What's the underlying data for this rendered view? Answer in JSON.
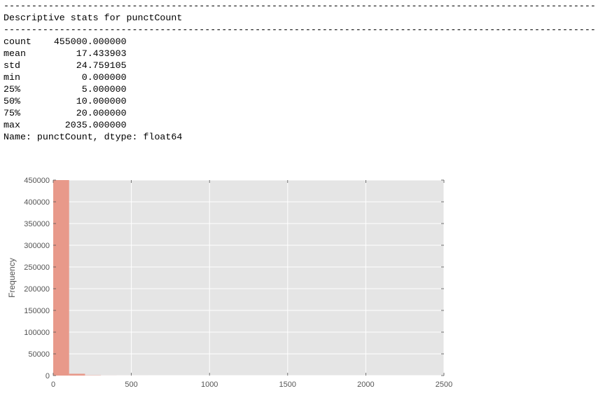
{
  "console": {
    "rule": "----------------------------------------------------------------------------------------------------------",
    "heading": "Descriptive stats for punctCount",
    "stats": [
      {
        "label": "count",
        "value": "455000.000000"
      },
      {
        "label": "mean",
        "value": "17.433903"
      },
      {
        "label": "std",
        "value": "24.759105"
      },
      {
        "label": "min",
        "value": "0.000000"
      },
      {
        "label": "25%",
        "value": "5.000000"
      },
      {
        "label": "50%",
        "value": "10.000000"
      },
      {
        "label": "75%",
        "value": "20.000000"
      },
      {
        "label": "max",
        "value": "2035.000000"
      }
    ],
    "footer": "Name: punctCount, dtype: float64"
  },
  "chart_data": {
    "type": "bar",
    "title": "",
    "xlabel": "",
    "ylabel": "Frequency",
    "xlim": [
      0,
      2500
    ],
    "ylim": [
      0,
      450000
    ],
    "xticks": [
      0,
      500,
      1000,
      1500,
      2000,
      2500
    ],
    "yticks": [
      0,
      50000,
      100000,
      150000,
      200000,
      250000,
      300000,
      350000,
      400000,
      450000
    ],
    "grid": true,
    "bins": [
      {
        "x0": 0,
        "x1": 101.75,
        "count": 450000
      },
      {
        "x0": 101.75,
        "x1": 203.5,
        "count": 4200
      },
      {
        "x0": 203.5,
        "x1": 305.25,
        "count": 600
      },
      {
        "x0": 305.25,
        "x1": 407,
        "count": 120
      },
      {
        "x0": 407,
        "x1": 508.75,
        "count": 40
      },
      {
        "x0": 508.75,
        "x1": 610.5,
        "count": 15
      },
      {
        "x0": 610.5,
        "x1": 712.25,
        "count": 8
      },
      {
        "x0": 712.25,
        "x1": 814,
        "count": 5
      },
      {
        "x0": 814,
        "x1": 915.75,
        "count": 3
      },
      {
        "x0": 915.75,
        "x1": 1017.5,
        "count": 2
      },
      {
        "x0": 1017.5,
        "x1": 1119.25,
        "count": 2
      },
      {
        "x0": 1119.25,
        "x1": 1221,
        "count": 1
      },
      {
        "x0": 1221,
        "x1": 1322.75,
        "count": 1
      },
      {
        "x0": 1322.75,
        "x1": 1424.5,
        "count": 1
      },
      {
        "x0": 1424.5,
        "x1": 1526.25,
        "count": 0
      },
      {
        "x0": 1526.25,
        "x1": 1628,
        "count": 1
      },
      {
        "x0": 1628,
        "x1": 1729.75,
        "count": 0
      },
      {
        "x0": 1729.75,
        "x1": 1831.5,
        "count": 0
      },
      {
        "x0": 1831.5,
        "x1": 1933.25,
        "count": 0
      },
      {
        "x0": 1933.25,
        "x1": 2035,
        "count": 1
      }
    ],
    "colors": {
      "bar": "#e8998a",
      "plot_bg": "#e5e5e5",
      "grid": "#ffffff",
      "tick_text": "#555555"
    }
  }
}
